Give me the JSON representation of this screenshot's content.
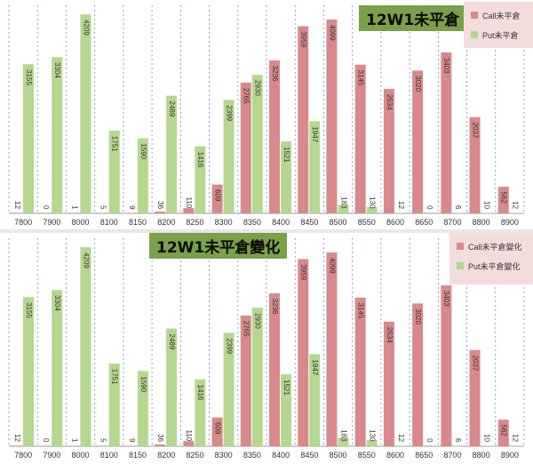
{
  "colors": {
    "call": "#d9898b",
    "put": "#b5d78f",
    "title_bg": "#7aa14a",
    "legend_bg": "#f2dcdc"
  },
  "chart_data": [
    {
      "type": "bar",
      "title": "12W1未平倉",
      "categories": [
        "7800",
        "7900",
        "8000",
        "8100",
        "8150",
        "8200",
        "8250",
        "8300",
        "8350",
        "8400",
        "8450",
        "8500",
        "8550",
        "8600",
        "8650",
        "8700",
        "8800",
        "8900"
      ],
      "series": [
        {
          "name": "Call未平倉",
          "values": [
            12,
            0,
            1,
            5,
            9,
            36,
            110,
            609,
            2765,
            3236,
            3959,
            4099,
            3145,
            2634,
            3020,
            3403,
            2037,
            562
          ]
        },
        {
          "name": "Put未平倉",
          "values": [
            3155,
            3304,
            4209,
            1751,
            1590,
            2489,
            1416,
            2399,
            2930,
            1521,
            1947,
            183,
            130,
            12,
            0,
            6,
            10,
            12
          ]
        }
      ],
      "ylim": [
        0,
        4400
      ],
      "legend": "top-right"
    },
    {
      "type": "bar",
      "title": "12W1未平倉變化",
      "categories": [
        "7800",
        "7900",
        "8000",
        "8100",
        "8150",
        "8200",
        "8250",
        "8300",
        "8350",
        "8400",
        "8450",
        "8500",
        "8550",
        "8600",
        "8650",
        "8700",
        "8800",
        "8900"
      ],
      "series": [
        {
          "name": "Call未平倉變化",
          "values": [
            12,
            0,
            1,
            5,
            9,
            36,
            110,
            609,
            2765,
            3236,
            3959,
            4099,
            3145,
            2634,
            3020,
            3403,
            2037,
            562
          ]
        },
        {
          "name": "Put未平倉變化",
          "values": [
            3155,
            3304,
            4209,
            1751,
            1590,
            2489,
            1416,
            2399,
            2930,
            1521,
            1947,
            183,
            130,
            12,
            0,
            6,
            10,
            12
          ]
        }
      ],
      "ylim": [
        0,
        4400
      ],
      "legend": "right"
    }
  ]
}
